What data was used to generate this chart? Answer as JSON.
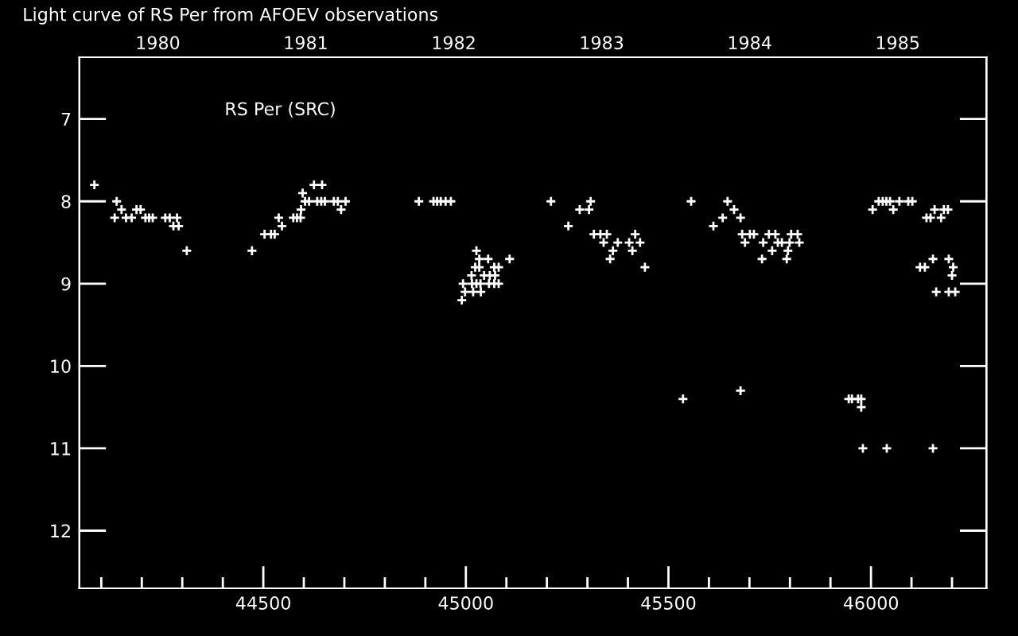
{
  "chart_data": {
    "type": "scatter",
    "title": "Light curve of RS Per from AFOEV observations",
    "annotations": [
      "RS Per (SRC)"
    ],
    "marker": "cross",
    "grid": false,
    "xlim": [
      44046,
      46285
    ],
    "ylim": [
      12.7,
      6.25
    ],
    "xticks": [
      {
        "value": 44100,
        "label": null
      },
      {
        "value": 44200,
        "label": null
      },
      {
        "value": 44300,
        "label": null
      },
      {
        "value": 44400,
        "label": null
      },
      44500,
      {
        "value": 44600,
        "label": null
      },
      {
        "value": 44700,
        "label": null
      },
      {
        "value": 44800,
        "label": null
      },
      {
        "value": 44900,
        "label": null
      },
      45000,
      {
        "value": 45100,
        "label": null
      },
      {
        "value": 45200,
        "label": null
      },
      {
        "value": 45300,
        "label": null
      },
      {
        "value": 45400,
        "label": null
      },
      45500,
      {
        "value": 45600,
        "label": null
      },
      {
        "value": 45700,
        "label": null
      },
      {
        "value": 45800,
        "label": null
      },
      {
        "value": 45900,
        "label": null
      },
      46000,
      {
        "value": 46100,
        "label": null
      },
      {
        "value": 46200,
        "label": null
      }
    ],
    "yticks": [
      7,
      8,
      9,
      10,
      11,
      12
    ],
    "x2lim": [
      1979.47,
      1985.6
    ],
    "x2ticks": [
      1980,
      1981,
      1982,
      1983,
      1984,
      1985
    ],
    "series": [
      {
        "color": "#ffffff",
        "x": [
          44083,
          44138,
          44150,
          44133,
          44161,
          44175,
          44187,
          44197,
          44209,
          44218,
          44227,
          44258,
          44269,
          44287,
          44278,
          44291,
          44311,
          44472,
          44503,
          44519,
          44528,
          44538,
          44546,
          44574,
          44583,
          44592,
          44593,
          44597,
          44603,
          44613,
          44633,
          44643,
          44652,
          44625,
          44645,
          44674,
          44684,
          44703,
          44692,
          44884,
          44920,
          44929,
          44938,
          44950,
          44963,
          45026,
          45033,
          45055,
          45108,
          45023,
          45033,
          45070,
          45081,
          45014,
          45045,
          45059,
          45072,
          44993,
          45015,
          45026,
          45036,
          45057,
          45070,
          45081,
          44998,
          45018,
          45037,
          44990,
          45210,
          45308,
          45281,
          45304,
          45253,
          45316,
          45332,
          45348,
          45418,
          45340,
          45375,
          45403,
          45430,
          45363,
          45411,
          45356,
          45442,
          45556,
          45646,
          45662,
          45634,
          45678,
          45611,
          45682,
          45701,
          45711,
          45748,
          45764,
          45803,
          45819,
          45689,
          45734,
          45770,
          45780,
          45799,
          45823,
          45756,
          45795,
          45731,
          45792,
          46019,
          46029,
          46038,
          46047,
          46070,
          46092,
          46102,
          46004,
          46055,
          46157,
          46180,
          46190,
          46137,
          46147,
          46173,
          46153,
          46192,
          46121,
          46133,
          46203,
          46200,
          46161,
          46192,
          46208,
          45536,
          45678,
          45945,
          45953,
          45968,
          45976,
          45976,
          45980,
          46039,
          46153
        ],
        "values": [
          7.8,
          8.0,
          8.1,
          8.2,
          8.2,
          8.2,
          8.1,
          8.1,
          8.2,
          8.2,
          8.2,
          8.2,
          8.2,
          8.2,
          8.3,
          8.3,
          8.6,
          8.6,
          8.4,
          8.4,
          8.4,
          8.2,
          8.3,
          8.2,
          8.2,
          8.2,
          8.1,
          7.9,
          8.0,
          8.0,
          8.0,
          8.0,
          8.0,
          7.8,
          7.8,
          8.0,
          8.0,
          8.0,
          8.1,
          8.0,
          8.0,
          8.0,
          8.0,
          8.0,
          8.0,
          8.6,
          8.7,
          8.7,
          8.7,
          8.8,
          8.8,
          8.8,
          8.8,
          8.9,
          8.9,
          8.9,
          8.9,
          9.0,
          9.0,
          9.0,
          9.0,
          9.0,
          9.0,
          9.0,
          9.1,
          9.1,
          9.1,
          9.2,
          8.0,
          8.0,
          8.1,
          8.1,
          8.3,
          8.4,
          8.4,
          8.4,
          8.4,
          8.5,
          8.5,
          8.5,
          8.5,
          8.6,
          8.6,
          8.7,
          8.8,
          8.0,
          8.0,
          8.1,
          8.2,
          8.2,
          8.3,
          8.4,
          8.4,
          8.4,
          8.4,
          8.4,
          8.4,
          8.4,
          8.5,
          8.5,
          8.5,
          8.5,
          8.5,
          8.5,
          8.6,
          8.6,
          8.7,
          8.7,
          8.0,
          8.0,
          8.0,
          8.0,
          8.0,
          8.0,
          8.0,
          8.1,
          8.1,
          8.1,
          8.1,
          8.1,
          8.2,
          8.2,
          8.2,
          8.7,
          8.7,
          8.8,
          8.8,
          8.8,
          8.9,
          9.1,
          9.1,
          9.1,
          10.4,
          10.3,
          10.4,
          10.4,
          10.4,
          10.4,
          10.5,
          11.0,
          11.0,
          11.0
        ]
      }
    ]
  }
}
